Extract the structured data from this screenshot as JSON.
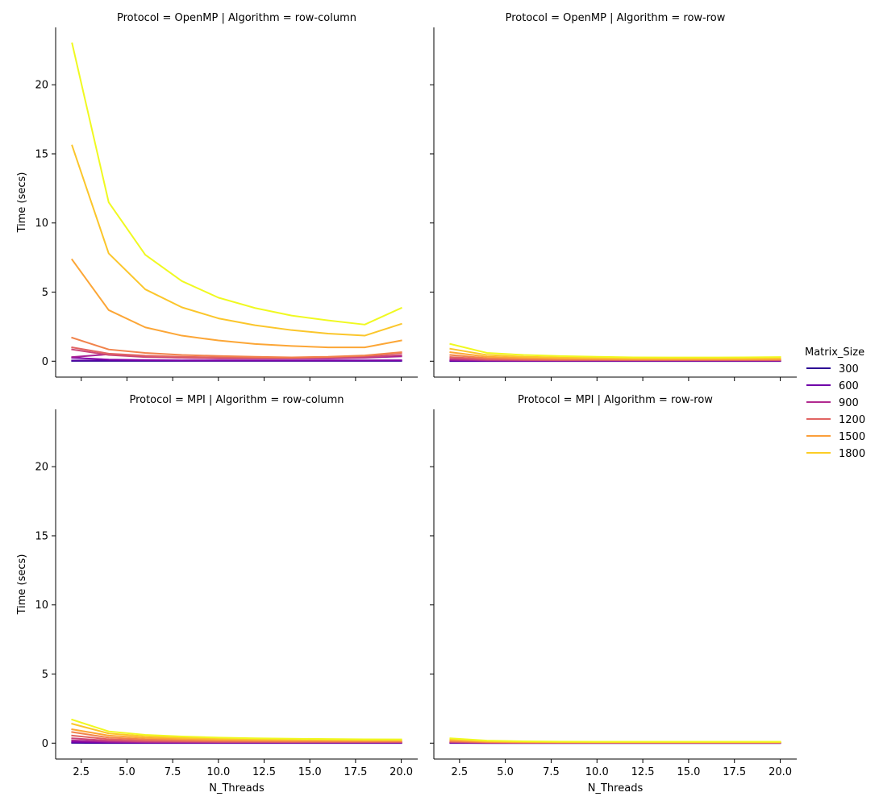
{
  "chart_data": {
    "type": "line",
    "facet_row_variable": "Protocol",
    "facet_col_variable": "Algorithm",
    "xlabel": "N_Threads",
    "ylabel": "Time (secs)",
    "xlim": [
      1.1,
      20.9
    ],
    "ylim": [
      -1.15,
      24.15
    ],
    "x_ticks": [
      2.5,
      5.0,
      7.5,
      10.0,
      12.5,
      15.0,
      17.5,
      20.0
    ],
    "x_tick_labels": [
      "2.5",
      "5.0",
      "7.5",
      "10.0",
      "12.5",
      "15.0",
      "17.5",
      "20.0"
    ],
    "y_ticks": [
      0,
      5,
      10,
      15,
      20
    ],
    "y_tick_labels": [
      "0",
      "5",
      "10",
      "15",
      "20"
    ],
    "x": [
      2,
      4,
      6,
      8,
      10,
      12,
      14,
      16,
      18,
      20
    ],
    "legend": {
      "title": "Matrix_Size",
      "placement": "right",
      "entries": [
        {
          "label": "300",
          "color": "#2c0594"
        },
        {
          "label": "600",
          "color": "#6f00a8"
        },
        {
          "label": "900",
          "color": "#b12a90"
        },
        {
          "label": "1200",
          "color": "#e16462"
        },
        {
          "label": "1500",
          "color": "#fb9f3a"
        },
        {
          "label": "1800",
          "color": "#fccd25"
        }
      ]
    },
    "panels": [
      {
        "title": "Protocol = OpenMP | Algorithm = row-column",
        "series": [
          {
            "color": "#1d068f",
            "values": [
              0.02,
              0.02,
              0.02,
              0.02,
              0.02,
              0.02,
              0.02,
              0.02,
              0.02,
              0.02
            ]
          },
          {
            "color": "#5402a3",
            "values": [
              0.05,
              0.05,
              0.05,
              0.05,
              0.05,
              0.05,
              0.05,
              0.05,
              0.05,
              0.05
            ]
          },
          {
            "color": "#7e03a8",
            "values": [
              0.25,
              0.12,
              0.08,
              0.06,
              0.05,
              0.05,
              0.05,
              0.05,
              0.06,
              0.07
            ]
          },
          {
            "color": "#a82296",
            "values": [
              0.3,
              0.5,
              0.35,
              0.25,
              0.2,
              0.2,
              0.2,
              0.2,
              0.25,
              0.35
            ]
          },
          {
            "color": "#cb4679",
            "values": [
              0.85,
              0.45,
              0.3,
              0.25,
              0.22,
              0.2,
              0.2,
              0.25,
              0.3,
              0.45
            ]
          },
          {
            "color": "#e16462",
            "values": [
              1.0,
              0.55,
              0.4,
              0.32,
              0.28,
              0.25,
              0.25,
              0.3,
              0.38,
              0.6
            ]
          },
          {
            "color": "#f1834b",
            "values": [
              1.7,
              0.85,
              0.6,
              0.45,
              0.38,
              0.32,
              0.28,
              0.32,
              0.42,
              0.65
            ]
          },
          {
            "color": "#fca636",
            "values": [
              7.35,
              3.7,
              2.45,
              1.85,
              1.5,
              1.25,
              1.1,
              1.0,
              1.0,
              1.5
            ]
          },
          {
            "color": "#fbc62b",
            "values": [
              15.6,
              7.8,
              5.2,
              3.9,
              3.1,
              2.6,
              2.25,
              2.0,
              1.85,
              2.7
            ]
          },
          {
            "color": "#f0f921",
            "values": [
              23.0,
              11.5,
              7.7,
              5.8,
              4.6,
              3.85,
              3.3,
              2.95,
              2.65,
              3.85
            ]
          }
        ]
      },
      {
        "title": "Protocol = OpenMP | Algorithm = row-row",
        "series": [
          {
            "color": "#1d068f",
            "values": [
              0.01,
              0.01,
              0.01,
              0.01,
              0.01,
              0.01,
              0.01,
              0.01,
              0.01,
              0.01
            ]
          },
          {
            "color": "#5402a3",
            "values": [
              0.02,
              0.02,
              0.02,
              0.02,
              0.02,
              0.02,
              0.02,
              0.02,
              0.02,
              0.02
            ]
          },
          {
            "color": "#7e03a8",
            "values": [
              0.05,
              0.04,
              0.03,
              0.03,
              0.03,
              0.03,
              0.03,
              0.03,
              0.03,
              0.03
            ]
          },
          {
            "color": "#a82296",
            "values": [
              0.1,
              0.06,
              0.05,
              0.05,
              0.05,
              0.05,
              0.05,
              0.05,
              0.05,
              0.05
            ]
          },
          {
            "color": "#cb4679",
            "values": [
              0.18,
              0.1,
              0.08,
              0.07,
              0.07,
              0.07,
              0.07,
              0.07,
              0.07,
              0.07
            ]
          },
          {
            "color": "#e16462",
            "values": [
              0.3,
              0.15,
              0.12,
              0.1,
              0.1,
              0.1,
              0.1,
              0.1,
              0.1,
              0.1
            ]
          },
          {
            "color": "#f1834b",
            "values": [
              0.45,
              0.22,
              0.17,
              0.14,
              0.13,
              0.12,
              0.12,
              0.12,
              0.12,
              0.12
            ]
          },
          {
            "color": "#fca636",
            "values": [
              0.65,
              0.32,
              0.24,
              0.2,
              0.18,
              0.16,
              0.15,
              0.15,
              0.15,
              0.16
            ]
          },
          {
            "color": "#fbc62b",
            "values": [
              0.9,
              0.45,
              0.33,
              0.27,
              0.23,
              0.2,
              0.2,
              0.2,
              0.2,
              0.22
            ]
          },
          {
            "color": "#f0f921",
            "values": [
              1.25,
              0.6,
              0.45,
              0.37,
              0.32,
              0.28,
              0.27,
              0.27,
              0.28,
              0.3
            ]
          }
        ]
      },
      {
        "title": "Protocol = MPI | Algorithm = row-column",
        "series": [
          {
            "color": "#1d068f",
            "values": [
              0.02,
              0.01,
              0.01,
              0.01,
              0.01,
              0.01,
              0.01,
              0.01,
              0.01,
              0.01
            ]
          },
          {
            "color": "#5402a3",
            "values": [
              0.05,
              0.03,
              0.02,
              0.02,
              0.02,
              0.02,
              0.02,
              0.02,
              0.02,
              0.02
            ]
          },
          {
            "color": "#7e03a8",
            "values": [
              0.1,
              0.05,
              0.04,
              0.03,
              0.03,
              0.03,
              0.03,
              0.03,
              0.03,
              0.03
            ]
          },
          {
            "color": "#a82296",
            "values": [
              0.2,
              0.1,
              0.07,
              0.06,
              0.05,
              0.05,
              0.05,
              0.05,
              0.05,
              0.05
            ]
          },
          {
            "color": "#cb4679",
            "values": [
              0.35,
              0.18,
              0.12,
              0.1,
              0.08,
              0.08,
              0.07,
              0.07,
              0.07,
              0.07
            ]
          },
          {
            "color": "#e16462",
            "values": [
              0.55,
              0.28,
              0.19,
              0.15,
              0.12,
              0.11,
              0.1,
              0.1,
              0.1,
              0.1
            ]
          },
          {
            "color": "#f1834b",
            "values": [
              0.8,
              0.4,
              0.28,
              0.22,
              0.18,
              0.16,
              0.15,
              0.14,
              0.14,
              0.14
            ]
          },
          {
            "color": "#fca636",
            "values": [
              1.0,
              0.55,
              0.38,
              0.3,
              0.25,
              0.22,
              0.2,
              0.19,
              0.18,
              0.18
            ]
          },
          {
            "color": "#fbc62b",
            "values": [
              1.4,
              0.7,
              0.5,
              0.38,
              0.32,
              0.28,
              0.26,
              0.24,
              0.22,
              0.22
            ]
          },
          {
            "color": "#f0f921",
            "values": [
              1.7,
              0.85,
              0.6,
              0.48,
              0.4,
              0.35,
              0.32,
              0.3,
              0.28,
              0.27
            ]
          }
        ]
      },
      {
        "title": "Protocol = MPI | Algorithm = row-row",
        "series": [
          {
            "color": "#1d068f",
            "values": [
              0.01,
              0.01,
              0.01,
              0.01,
              0.01,
              0.01,
              0.01,
              0.01,
              0.01,
              0.01
            ]
          },
          {
            "color": "#5402a3",
            "values": [
              0.02,
              0.01,
              0.01,
              0.01,
              0.01,
              0.01,
              0.01,
              0.01,
              0.01,
              0.01
            ]
          },
          {
            "color": "#7e03a8",
            "values": [
              0.03,
              0.02,
              0.02,
              0.02,
              0.02,
              0.02,
              0.02,
              0.02,
              0.02,
              0.02
            ]
          },
          {
            "color": "#a82296",
            "values": [
              0.05,
              0.03,
              0.02,
              0.02,
              0.02,
              0.02,
              0.02,
              0.02,
              0.02,
              0.02
            ]
          },
          {
            "color": "#cb4679",
            "values": [
              0.08,
              0.04,
              0.03,
              0.03,
              0.03,
              0.03,
              0.03,
              0.03,
              0.03,
              0.03
            ]
          },
          {
            "color": "#e16462",
            "values": [
              0.12,
              0.06,
              0.04,
              0.04,
              0.04,
              0.04,
              0.04,
              0.04,
              0.04,
              0.04
            ]
          },
          {
            "color": "#f1834b",
            "values": [
              0.16,
              0.08,
              0.06,
              0.05,
              0.05,
              0.05,
              0.05,
              0.05,
              0.05,
              0.05
            ]
          },
          {
            "color": "#fca636",
            "values": [
              0.22,
              0.11,
              0.08,
              0.07,
              0.06,
              0.06,
              0.06,
              0.06,
              0.06,
              0.06
            ]
          },
          {
            "color": "#fbc62b",
            "values": [
              0.28,
              0.14,
              0.1,
              0.09,
              0.08,
              0.08,
              0.08,
              0.08,
              0.08,
              0.08
            ]
          },
          {
            "color": "#f0f921",
            "values": [
              0.35,
              0.18,
              0.13,
              0.11,
              0.1,
              0.1,
              0.1,
              0.1,
              0.1,
              0.1
            ]
          }
        ]
      }
    ]
  }
}
